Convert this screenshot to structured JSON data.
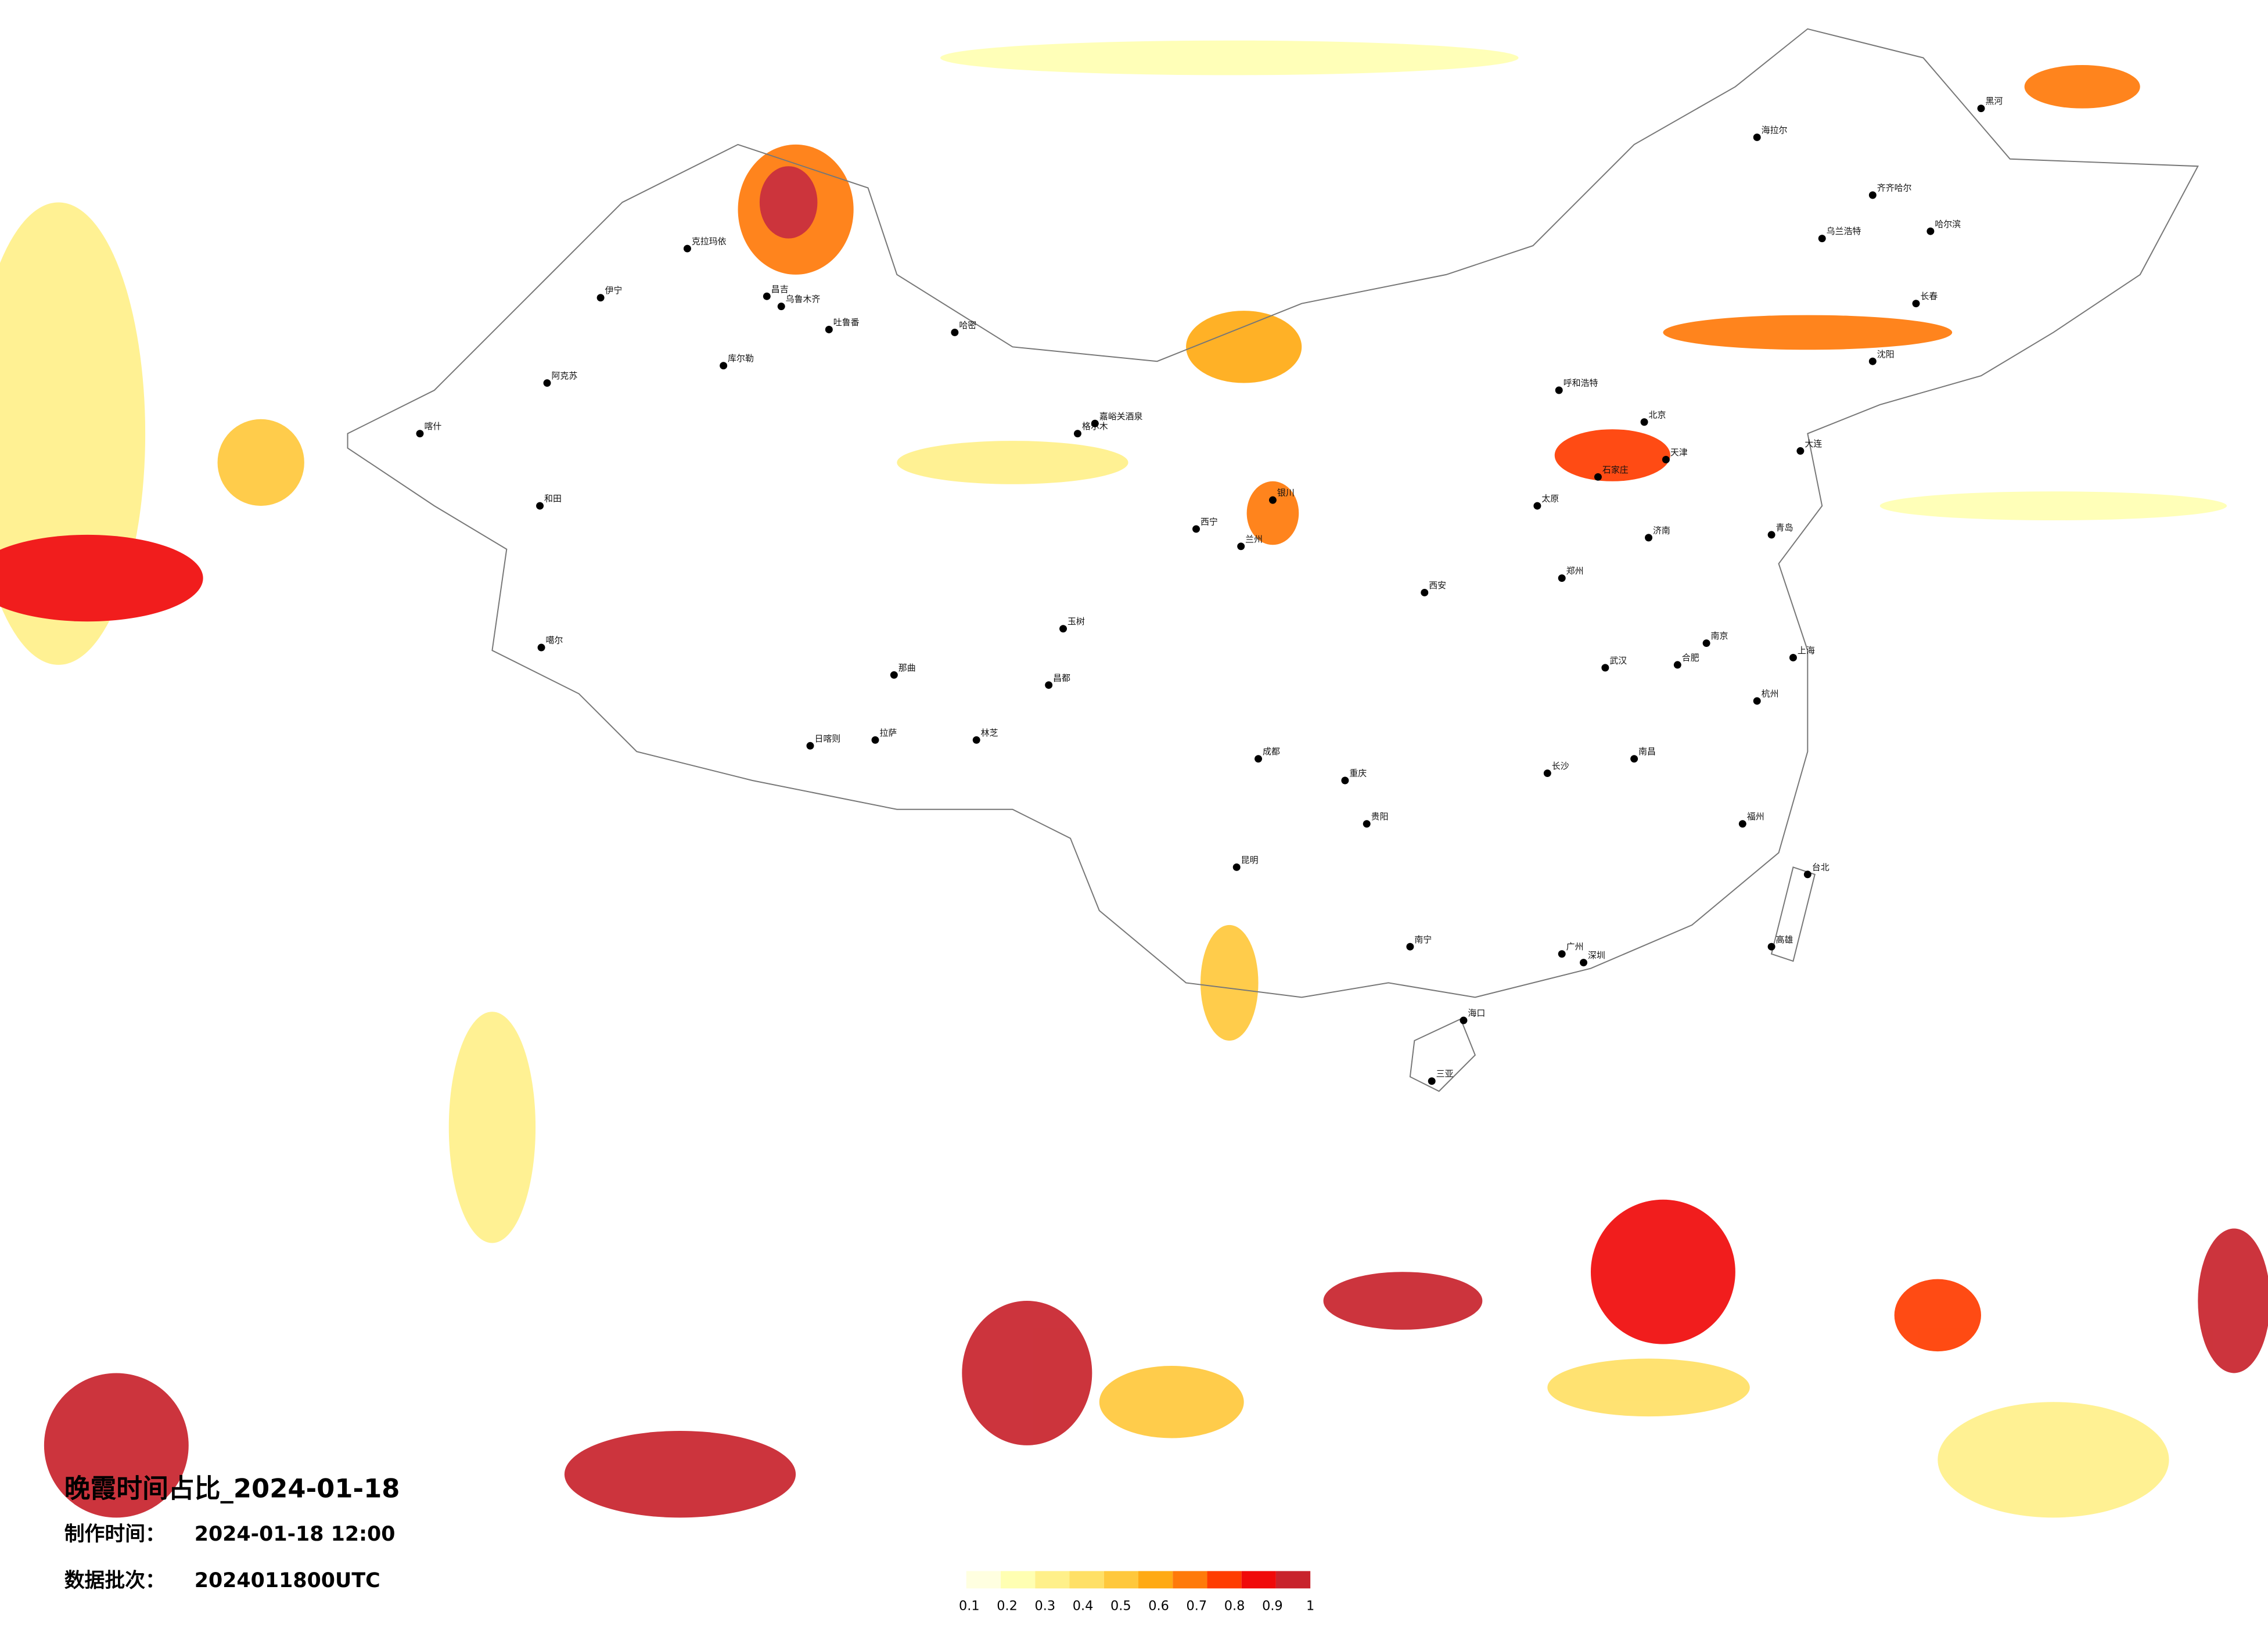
{
  "title": "晚霞时间占比_2024-01-18",
  "made_time": {
    "label": "制作时间：",
    "value": "2024-01-18 12:00"
  },
  "batch": {
    "label": "数据批次：",
    "value": "2024011800UTC"
  },
  "legend": {
    "ticks": [
      0.1,
      0.2,
      0.3,
      0.4,
      0.5,
      0.6,
      0.7,
      0.8,
      0.9,
      1
    ],
    "colors": [
      "#ffffe0",
      "#ffffb2",
      "#fff08a",
      "#ffe066",
      "#ffc83c",
      "#ffaa14",
      "#ff7a0a",
      "#ff3c00",
      "#f00a0a",
      "#c8232c"
    ]
  },
  "cities": [
    "喀什",
    "伊宁",
    "克拉玛依",
    "昌吉",
    "乌鲁木齐",
    "吐鲁番",
    "哈密",
    "阿克苏",
    "库尔勒",
    "和田",
    "噶尔",
    "日喀则",
    "拉萨",
    "林芝",
    "那曲",
    "昌都",
    "玉树",
    "格尔木",
    "嘉峪关酒泉",
    "西宁",
    "兰州",
    "银川",
    "呼和浩特",
    "北京",
    "天津",
    "石家庄",
    "太原",
    "济南",
    "郑州",
    "西安",
    "成都",
    "重庆",
    "武汉",
    "长沙",
    "南京",
    "上海",
    "杭州",
    "福州",
    "广州",
    "深圳",
    "南宁",
    "海口",
    "三亚",
    "昆明",
    "贵阳",
    "南昌",
    "合肥",
    "台北",
    "高雄",
    "哈尔滨",
    "长春",
    "沈阳",
    "大连",
    "海拉尔",
    "齐齐哈尔",
    "青岛",
    "乌兰浩特",
    "黑河"
  ]
}
